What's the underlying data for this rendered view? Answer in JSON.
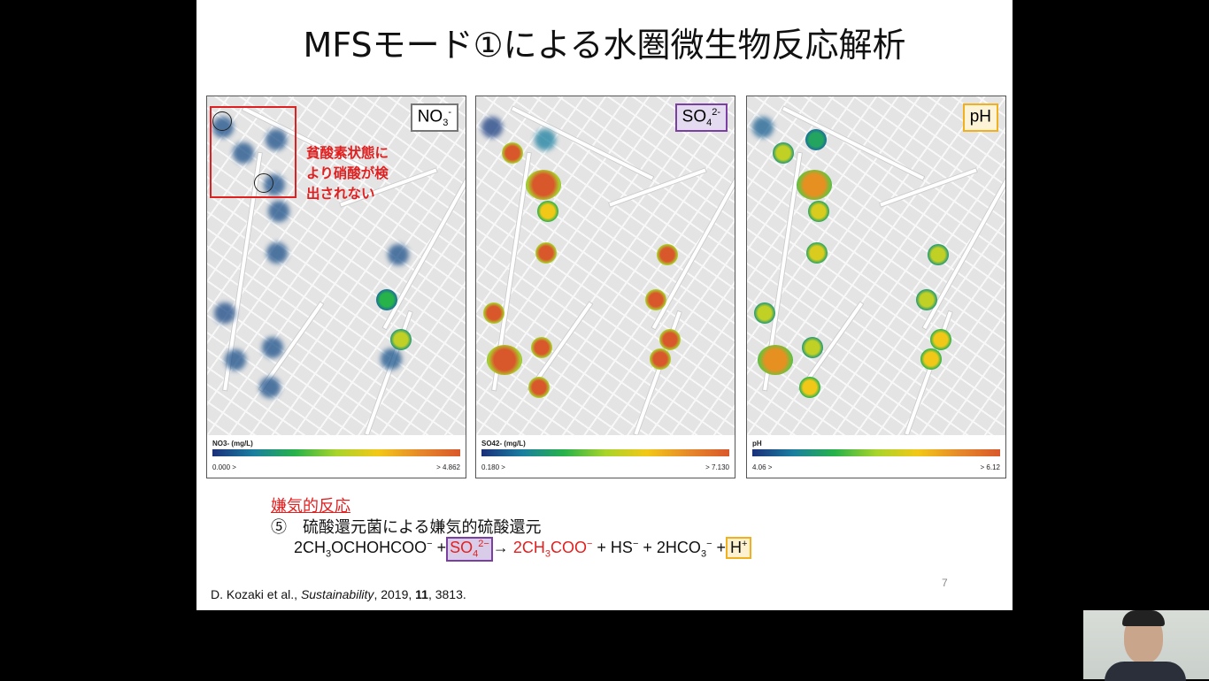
{
  "slide": {
    "title": "MFSモード①による水圏微生物反応解析",
    "page_number": "7",
    "annotation": {
      "line1": "貧酸素状態に",
      "line2": "より硝酸が検",
      "line3": "出されない"
    },
    "panels": [
      {
        "tag_main": "NO",
        "tag_sub": "3",
        "tag_sup": "-",
        "tag_color": "#777777",
        "legend_title": "NO3- (mg/L)",
        "min": "0.000 >",
        "max": "> 4.862",
        "levels": [
          0.1,
          0.1,
          0.1,
          0.1,
          0.1,
          0.08,
          0.1,
          0.1,
          0.1,
          0.1,
          0.45,
          0.7,
          0.12,
          0.1
        ]
      },
      {
        "tag_main": "SO",
        "tag_sub": "4",
        "tag_sup": "2-",
        "tag_color": "#7a3fa0",
        "legend_title": "SO42- (mg/L)",
        "min": "0.180 >",
        "max": "> 7.130",
        "levels": [
          0.05,
          0.25,
          1,
          1,
          0.8,
          1,
          1,
          1,
          1,
          1,
          1,
          1,
          1,
          1
        ]
      },
      {
        "tag_main": "pH",
        "tag_sub": "",
        "tag_sup": "",
        "tag_color": "#f0b020",
        "legend_title": "pH",
        "min": "4.06 >",
        "max": "> 6.12",
        "levels": [
          0.15,
          0.4,
          0.7,
          0.9,
          0.75,
          0.75,
          0.7,
          0.7,
          0.9,
          0.8,
          0.7,
          0.7,
          0.8,
          0.8
        ]
      }
    ],
    "reaction": {
      "heading": "嫌気的反応",
      "item": "⑤　硫酸還元菌による嫌気的硫酸還元",
      "lhs1": "2CH",
      "lhs1_sub": "3",
      "lhs1b": "OCHOHCOO",
      "lhs1_sup": "−",
      "plus": "+",
      "so4": "SO",
      "so4_sub": "4",
      "so4_sup": "2−",
      "arrow": "→",
      "p1": "2CH",
      "p1_sub": "3",
      "p1b": "COO",
      "p1_sup": "−",
      "p2": "+ HS",
      "p2_sup": "−",
      "p3": "+ 2HCO",
      "p3_sub": "3",
      "p3_sup": "−",
      "p4": "+",
      "h": "H",
      "h_sup": "+"
    },
    "citation": {
      "authors": "D. Kozaki et al., ",
      "journal": "Sustainability",
      "year": ", 2019, ",
      "volume": "11",
      "pages": ", 3813."
    }
  },
  "colors": {
    "annotation": "#e02020",
    "so4_box": "#7a3fa0",
    "h_box": "#f0b020"
  }
}
